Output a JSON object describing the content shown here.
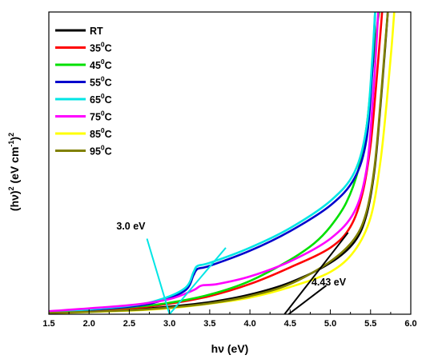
{
  "chart_data": {
    "type": "line",
    "xlabel": "hν (eV)",
    "ylabel_main": "(hν)",
    "ylabel_sup1": "2",
    "ylabel_mid": " (eV cm",
    "ylabel_sup2": "-1",
    "ylabel_end": ")",
    "ylabel_sup3": "2",
    "xlim": [
      1.5,
      6.0
    ],
    "ylim": [
      0,
      100
    ],
    "y_ticks_shown": false,
    "x_ticks": [
      "1.5",
      "2.0",
      "2.5",
      "3.0",
      "3.5",
      "4.0",
      "4.5",
      "5.0",
      "5.5",
      "6.0"
    ],
    "legend_position": "top-left",
    "series": [
      {
        "name": "RT",
        "base": "RT",
        "sup": "",
        "unit": "",
        "color": "#000000",
        "x": [
          1.5,
          2.5,
          3.0,
          3.5,
          4.0,
          4.5,
          5.0,
          5.3,
          5.45,
          5.55,
          5.62,
          5.68,
          5.72
        ],
        "y": [
          0.5,
          1.5,
          2.5,
          4.0,
          6.5,
          10.5,
          17.0,
          24.0,
          33.0,
          48.0,
          68.0,
          88.0,
          102.0
        ]
      },
      {
        "name": "35°C",
        "base": "35",
        "sup": "0",
        "unit": "C",
        "color": "#ff0000",
        "x": [
          1.5,
          2.5,
          3.0,
          3.5,
          4.0,
          4.5,
          5.0,
          5.25,
          5.4,
          5.5,
          5.57,
          5.62,
          5.65
        ],
        "y": [
          0.8,
          2.0,
          3.5,
          6.0,
          10.0,
          15.5,
          22.0,
          29.0,
          40.0,
          56.0,
          76.0,
          92.0,
          102.0
        ]
      },
      {
        "name": "45°C",
        "base": "45",
        "sup": "0",
        "unit": "C",
        "color": "#00e000",
        "x": [
          1.5,
          2.5,
          3.0,
          3.5,
          4.0,
          4.5,
          4.8,
          5.0,
          5.2,
          5.35,
          5.45,
          5.52,
          5.58,
          5.62
        ],
        "y": [
          0.8,
          2.3,
          3.8,
          6.5,
          11.0,
          18.0,
          23.5,
          29.0,
          37.0,
          48.0,
          62.0,
          80.0,
          95.0,
          102.0
        ]
      },
      {
        "name": "55°C",
        "base": "55",
        "sup": "0",
        "unit": "C",
        "color": "#0000cc",
        "x": [
          1.5,
          2.5,
          2.9,
          3.2,
          3.3,
          3.35,
          3.5,
          4.0,
          4.5,
          5.0,
          5.3,
          5.45,
          5.52,
          5.56
        ],
        "y": [
          0.5,
          2.5,
          4.5,
          8.0,
          13.0,
          15.0,
          16.0,
          21.0,
          27.5,
          36.0,
          45.0,
          58.0,
          80.0,
          102.0
        ]
      },
      {
        "name": "65°C",
        "base": "65",
        "sup": "0",
        "unit": "C",
        "color": "#00e5e5",
        "x": [
          1.5,
          2.5,
          2.9,
          3.2,
          3.3,
          3.35,
          3.5,
          4.0,
          4.5,
          5.0,
          5.3,
          5.45,
          5.52,
          5.56
        ],
        "y": [
          0.6,
          2.8,
          5.0,
          8.8,
          14.0,
          16.0,
          17.0,
          22.0,
          28.5,
          37.5,
          47.0,
          62.0,
          84.0,
          102.0
        ]
      },
      {
        "name": "75°C",
        "base": "75",
        "sup": "0",
        "unit": "C",
        "color": "#ff00ff",
        "x": [
          1.5,
          2.5,
          3.0,
          3.3,
          3.4,
          3.6,
          4.0,
          4.5,
          5.0,
          5.3,
          5.45,
          5.52,
          5.57,
          5.6
        ],
        "y": [
          1.0,
          3.0,
          5.0,
          8.0,
          9.5,
          10.0,
          12.5,
          17.5,
          25.0,
          34.0,
          48.0,
          68.0,
          88.0,
          102.0
        ]
      },
      {
        "name": "85°C",
        "base": "85",
        "sup": "0",
        "unit": "C",
        "color": "#ffff00",
        "x": [
          1.5,
          2.5,
          3.0,
          3.5,
          4.0,
          4.5,
          5.0,
          5.3,
          5.5,
          5.62,
          5.7,
          5.76,
          5.8
        ],
        "y": [
          0.3,
          1.2,
          2.0,
          3.5,
          5.5,
          9.0,
          14.0,
          21.0,
          32.0,
          50.0,
          70.0,
          88.0,
          102.0
        ]
      },
      {
        "name": "95°C",
        "base": "95",
        "sup": "0",
        "unit": "C",
        "color": "#808000",
        "x": [
          1.5,
          2.5,
          3.0,
          3.5,
          4.0,
          4.5,
          5.0,
          5.3,
          5.45,
          5.55,
          5.62,
          5.68,
          5.72
        ],
        "y": [
          0.4,
          1.3,
          2.2,
          3.6,
          6.0,
          10.0,
          17.5,
          25.0,
          34.0,
          49.0,
          69.0,
          89.0,
          102.0
        ]
      }
    ],
    "tangent_lines": [
      {
        "color": "#00e5e5",
        "x": [
          3.0,
          3.7
        ],
        "y": [
          0.0,
          22.0
        ]
      },
      {
        "color": "#00e5e5",
        "x": [
          2.72,
          3.0
        ],
        "y": [
          25.0,
          0.0
        ]
      },
      {
        "color": "#000000",
        "x": [
          4.43,
          5.22
        ],
        "y": [
          0.0,
          27.0
        ]
      },
      {
        "color": "#000000",
        "x": [
          4.48,
          4.95
        ],
        "y": [
          0.0,
          9.5
        ]
      }
    ],
    "annotations": [
      {
        "text": "3.0 eV",
        "x": 2.52,
        "y": 28.0
      },
      {
        "text": "4.43 eV",
        "x": 4.98,
        "y": 9.5
      }
    ]
  }
}
